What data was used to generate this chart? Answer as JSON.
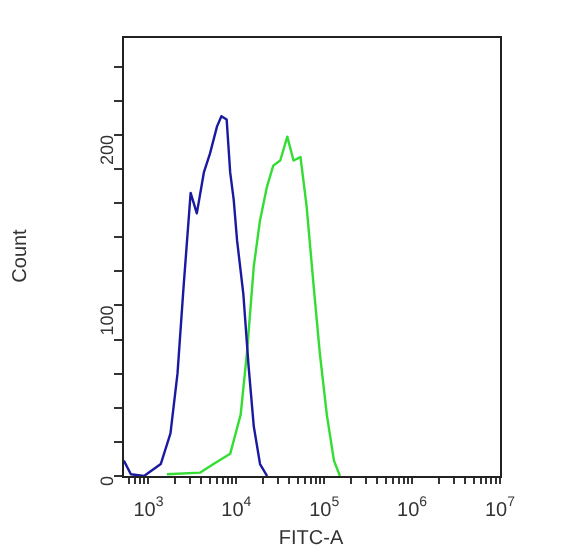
{
  "chart_data": {
    "type": "line",
    "xlabel": "FITC-A",
    "ylabel": "Count",
    "log": "x",
    "grid": false,
    "legend": false,
    "xlim": [
      500,
      10000000
    ],
    "ylim": [
      0,
      258
    ],
    "xticks": [
      {
        "value": 600,
        "label": null
      },
      {
        "value": 700,
        "label": null
      },
      {
        "value": 800,
        "label": null
      },
      {
        "value": 900,
        "label": null
      },
      {
        "value": 1000,
        "label": "10$^{3}$"
      },
      {
        "value": 2000,
        "label": null
      },
      {
        "value": 3000,
        "label": null
      },
      {
        "value": 4000,
        "label": null
      },
      {
        "value": 5000,
        "label": null
      },
      {
        "value": 6000,
        "label": null
      },
      {
        "value": 7000,
        "label": null
      },
      {
        "value": 8000,
        "label": null
      },
      {
        "value": 9000,
        "label": null
      },
      {
        "value": 10000,
        "label": "10$^{4}$"
      },
      {
        "value": 20000,
        "label": null
      },
      {
        "value": 30000,
        "label": null
      },
      {
        "value": 40000,
        "label": null
      },
      {
        "value": 50000,
        "label": null
      },
      {
        "value": 60000,
        "label": null
      },
      {
        "value": 70000,
        "label": null
      },
      {
        "value": 80000,
        "label": null
      },
      {
        "value": 90000,
        "label": null
      },
      {
        "value": 100000,
        "label": "10$^{5}$"
      },
      {
        "value": 200000,
        "label": null
      },
      {
        "value": 300000,
        "label": null
      },
      {
        "value": 400000,
        "label": null
      },
      {
        "value": 500000,
        "label": null
      },
      {
        "value": 600000,
        "label": null
      },
      {
        "value": 700000,
        "label": null
      },
      {
        "value": 800000,
        "label": null
      },
      {
        "value": 900000,
        "label": null
      },
      {
        "value": 1000000,
        "label": "10$^{6}$"
      },
      {
        "value": 2000000,
        "label": null
      },
      {
        "value": 3000000,
        "label": null
      },
      {
        "value": 4000000,
        "label": null
      },
      {
        "value": 5000000,
        "label": null
      },
      {
        "value": 6000000,
        "label": null
      },
      {
        "value": 7000000,
        "label": null
      },
      {
        "value": 8000000,
        "label": null
      },
      {
        "value": 9000000,
        "label": null
      },
      {
        "value": 10000000,
        "label": "10$^{7}$"
      }
    ],
    "yticks": [
      0,
      {
        "value": 20,
        "label": null
      },
      {
        "value": 40,
        "label": null
      },
      {
        "value": 60,
        "label": null
      },
      {
        "value": 80,
        "label": null
      },
      100,
      {
        "value": 120,
        "label": null
      },
      {
        "value": 140,
        "label": null
      },
      {
        "value": 160,
        "label": null
      },
      {
        "value": 180,
        "label": null
      },
      200,
      {
        "value": 220,
        "label": null
      },
      {
        "value": 240,
        "label": null
      }
    ],
    "series": [
      {
        "color": "#1a1aa0",
        "x": [
          525,
          631,
          891,
          1380,
          1780,
          2140,
          2510,
          3020,
          3550,
          4270,
          5010,
          6030,
          6760,
          7760,
          8510,
          9330,
          10200,
          12000,
          13800,
          15800,
          18600,
          22400
        ],
        "values": [
          9,
          1,
          0,
          7,
          25,
          60,
          111,
          166,
          154,
          178,
          189,
          205,
          211,
          209,
          178,
          162,
          138,
          107,
          64,
          29,
          7,
          0
        ]
      },
      {
        "color": "#33dd33",
        "x": [
          1620,
          3890,
          5500,
          8510,
          11200,
          13200,
          15800,
          18600,
          22400,
          26300,
          31600,
          38000,
          44700,
          53700,
          63100,
          75900,
          89100,
          107000,
          129000,
          151000
        ],
        "values": [
          1,
          2,
          7,
          13,
          36,
          72,
          123,
          150,
          170,
          182,
          185,
          199,
          185,
          187,
          158,
          111,
          72,
          36,
          9,
          0
        ]
      }
    ]
  }
}
